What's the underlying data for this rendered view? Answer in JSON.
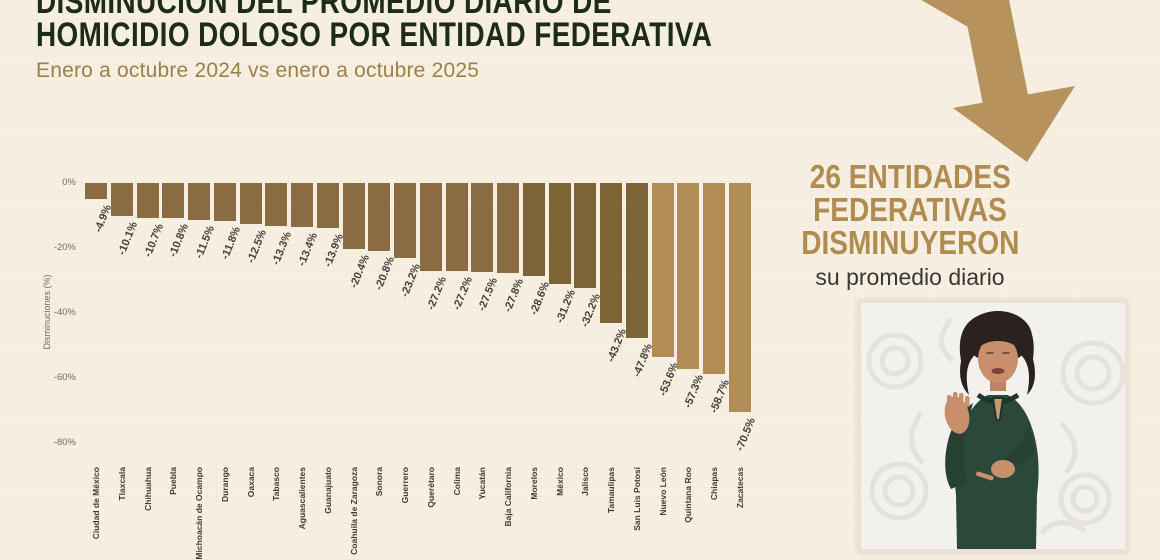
{
  "slide": {
    "title_line1": "DISMINUCIÓN DEL PROMEDIO DIARIO DE",
    "title_line2": "HOMICIDIO DOLOSO POR ENTIDAD FEDERATIVA",
    "subtitle": "Enero a octubre 2024 vs enero a octubre 2025",
    "title_color": "#1d2b1a",
    "subtitle_color": "#9d8045",
    "background_color": "#f6efe2"
  },
  "highlight": {
    "line1": "26 ENTIDADES",
    "line2": "FEDERATIVAS",
    "line3": "DISMINUYERON",
    "line4": "su promedio diario",
    "accent_color": "#b08c50",
    "text_color": "#3b3833",
    "arrow_color": "#b6925c"
  },
  "chart_data": {
    "type": "bar",
    "title": "Disminución del promedio diario de homicidio doloso por entidad federativa",
    "xlabel": "",
    "ylabel": "Disminuciones (%)",
    "ylim": [
      -80,
      0
    ],
    "ytick_values": [
      0,
      -20,
      -40,
      -60,
      -80
    ],
    "yticks": [
      "0%",
      "-20%",
      "-40%",
      "-60%",
      "-80%"
    ],
    "grid": false,
    "legend": "none",
    "categories": [
      "Ciudad de México",
      "Tlaxcala",
      "Chihuahua",
      "Puebla",
      "Michoacán de Ocampo",
      "Durango",
      "Oaxaca",
      "Tabasco",
      "Aguascalientes",
      "Guanajuato",
      "Coahuila de Zaragoza",
      "Sonora",
      "Guerrero",
      "Querétaro",
      "Colima",
      "Yucatán",
      "Baja California",
      "Morelos",
      "México",
      "Jalisco",
      "Tamaulipas",
      "San Luis Potosí",
      "Nuevo León",
      "Quintana Roo",
      "Chiapas",
      "Zacatecas"
    ],
    "values": [
      -4.9,
      -10.1,
      -10.7,
      -10.8,
      -11.5,
      -11.8,
      -12.5,
      -13.3,
      -13.4,
      -13.9,
      -20.4,
      -20.8,
      -23.2,
      -27.2,
      -27.2,
      -27.5,
      -27.8,
      -28.6,
      -31.2,
      -32.2,
      -43.2,
      -47.8,
      -53.6,
      -57.3,
      -58.7,
      -70.5
    ],
    "labels": [
      "-4.9%",
      "-10.1%",
      "-10.7%",
      "-10.8%",
      "-11.5%",
      "-11.8%",
      "-12.5%",
      "-13.3%",
      "-13.4%",
      "-13.9%",
      "-20.4%",
      "-20.8%",
      "-23.2%",
      "-27.2%",
      "-27.2%",
      "-27.5%",
      "-27.8%",
      "-28.6%",
      "-31.2%",
      "-32.2%",
      "-43.2%",
      "-47.8%",
      "-53.6%",
      "-57.3%",
      "-58.7%",
      "-70.5%"
    ],
    "bar_colors": [
      "#8a6c42",
      "#8a6c42",
      "#8a6c42",
      "#8a6c42",
      "#8a6c42",
      "#8a6c42",
      "#8a6c42",
      "#8a6c42",
      "#8a6c42",
      "#8a6c42",
      "#8a6c42",
      "#8a6c42",
      "#8a6c42",
      "#8a6c42",
      "#8a6c42",
      "#8a6c42",
      "#8a6c42",
      "#7d6437",
      "#7d6437",
      "#7d6437",
      "#7d6437",
      "#7d6437",
      "#b18c55",
      "#b18c55",
      "#b18c55",
      "#b18c55"
    ]
  },
  "interpreter": {
    "background_color": "#f2f1ed",
    "shirt_color": "#2b493a",
    "skin_color": "#c8906a",
    "hair_color": "#2b2220"
  }
}
